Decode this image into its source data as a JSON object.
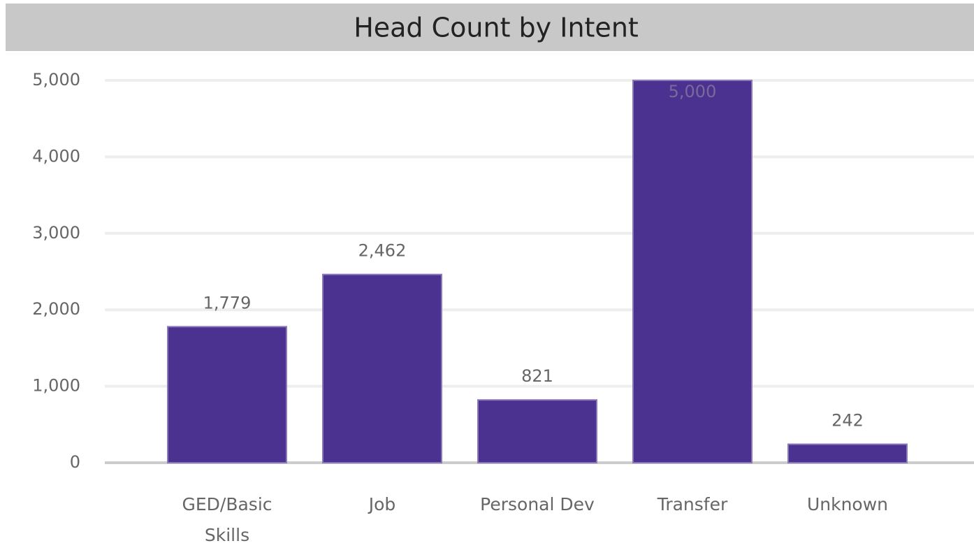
{
  "chart_data": {
    "type": "bar",
    "title": "Head Count by Intent",
    "categories": [
      "GED/Basic Skills",
      "Job",
      "Personal Dev",
      "Transfer",
      "Unknown"
    ],
    "values": [
      1779,
      2462,
      821,
      5000,
      242
    ],
    "value_labels": [
      "1,779",
      "2,462",
      "821",
      "5,000",
      "242"
    ],
    "color": "#4b3190",
    "ylim": [
      0,
      5000
    ],
    "yticks": [
      0,
      {
        "value": 1000,
        "label": "1,000"
      },
      {
        "value": 2000,
        "label": "2,000"
      },
      {
        "value": 3000,
        "label": "3,000"
      },
      {
        "value": 4000,
        "label": "4,000"
      },
      {
        "value": 5000,
        "label": "5,000"
      }
    ],
    "grid": true
  }
}
